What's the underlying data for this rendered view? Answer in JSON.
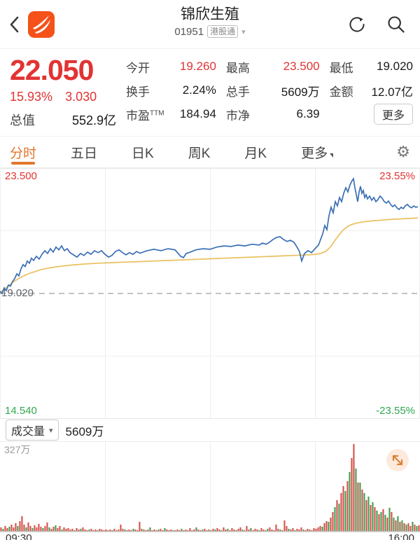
{
  "colors": {
    "accent_red": "#e23333",
    "accent_green": "#2fa84f",
    "tab_orange": "#e2772d",
    "price_line": "#3b6fb5",
    "avg_line": "#e9c05c",
    "vol_up": "#d5504a",
    "vol_down": "#3f9e4f",
    "logo_orange": "#f4521a"
  },
  "header": {
    "title": "锦欣生殖",
    "code": "01951",
    "market_tag": "港股通",
    "caret": "▾"
  },
  "quote": {
    "price": "22.050",
    "change_pct": "15.93%",
    "change_amt": "3.030",
    "mktcap_label": "总值",
    "mktcap_value": "552.9亿",
    "stats": [
      {
        "label": "今开",
        "value": "19.260",
        "color": "red"
      },
      {
        "label": "最高",
        "value": "23.500",
        "color": "red"
      },
      {
        "label": "最低",
        "value": "19.020",
        "color": "dark"
      },
      {
        "label": "换手",
        "value": "2.24%",
        "color": "dark"
      },
      {
        "label": "总手",
        "value": "5609万",
        "color": "dark"
      },
      {
        "label": "金额",
        "value": "12.07亿",
        "color": "dark"
      },
      {
        "label": "市盈",
        "sup": "TTM",
        "value": "184.94",
        "color": "dark"
      },
      {
        "label": "市净",
        "value": "6.39",
        "color": "dark"
      }
    ],
    "more_label": "更多"
  },
  "tabs": {
    "items": [
      "分时",
      "五日",
      "日K",
      "周K",
      "月K",
      "更多"
    ],
    "active_index": 0,
    "gear_icon": "⚙"
  },
  "chart_data": {
    "type": "line",
    "title": "分时走势图 (intraday time-share chart)",
    "x_axis": {
      "start_label": "09:30",
      "end_label": "16:00"
    },
    "y_max": 23.5,
    "y_min": 14.54,
    "prev_close": 19.02,
    "y_max_label": "23.500",
    "mid_label": "19.020",
    "y_min_label": "14.540",
    "pct_max_label": "23.55%",
    "pct_min_label": "-23.55%",
    "grid": "on",
    "series": [
      {
        "name": "price",
        "color": "#3b6fb5",
        "points": [
          [
            0,
            19.1
          ],
          [
            3,
            19.02
          ],
          [
            6,
            19.22
          ],
          [
            9,
            19.12
          ],
          [
            12,
            19.32
          ],
          [
            15,
            19.28
          ],
          [
            18,
            19.45
          ],
          [
            21,
            19.55
          ],
          [
            24,
            19.72
          ],
          [
            27,
            19.65
          ],
          [
            30,
            19.9
          ],
          [
            33,
            20.05
          ],
          [
            36,
            19.98
          ],
          [
            39,
            20.18
          ],
          [
            42,
            20.1
          ],
          [
            45,
            20.28
          ],
          [
            48,
            20.2
          ],
          [
            52,
            20.35
          ],
          [
            56,
            20.25
          ],
          [
            60,
            20.42
          ],
          [
            64,
            20.55
          ],
          [
            68,
            20.45
          ],
          [
            72,
            20.62
          ],
          [
            76,
            20.5
          ],
          [
            80,
            20.68
          ],
          [
            84,
            20.58
          ],
          [
            88,
            20.72
          ],
          [
            92,
            20.55
          ],
          [
            96,
            20.62
          ],
          [
            100,
            20.48
          ],
          [
            105,
            20.4
          ],
          [
            110,
            20.32
          ],
          [
            115,
            20.45
          ],
          [
            120,
            20.38
          ],
          [
            125,
            20.5
          ],
          [
            130,
            20.42
          ],
          [
            135,
            20.55
          ],
          [
            140,
            20.48
          ],
          [
            145,
            20.55
          ],
          [
            150,
            20.42
          ],
          [
            155,
            20.32
          ],
          [
            160,
            20.38
          ],
          [
            165,
            20.52
          ],
          [
            170,
            20.58
          ],
          [
            175,
            20.48
          ],
          [
            180,
            20.4
          ],
          [
            185,
            20.48
          ],
          [
            190,
            20.42
          ],
          [
            195,
            20.52
          ],
          [
            200,
            20.46
          ],
          [
            210,
            20.55
          ],
          [
            220,
            20.6
          ],
          [
            230,
            20.55
          ],
          [
            240,
            20.62
          ],
          [
            250,
            20.58
          ],
          [
            258,
            20.35
          ],
          [
            262,
            20.3
          ],
          [
            266,
            20.45
          ],
          [
            270,
            20.48
          ],
          [
            280,
            20.58
          ],
          [
            290,
            20.62
          ],
          [
            300,
            20.6
          ],
          [
            310,
            20.68
          ],
          [
            320,
            20.72
          ],
          [
            330,
            20.7
          ],
          [
            340,
            20.75
          ],
          [
            350,
            20.72
          ],
          [
            360,
            20.78
          ],
          [
            370,
            20.75
          ],
          [
            375,
            20.82
          ],
          [
            380,
            20.78
          ],
          [
            385,
            20.85
          ],
          [
            390,
            20.95
          ],
          [
            395,
            21.02
          ],
          [
            400,
            21.05
          ],
          [
            405,
            20.95
          ],
          [
            410,
            20.88
          ],
          [
            415,
            20.92
          ],
          [
            420,
            20.85
          ],
          [
            425,
            20.65
          ],
          [
            428,
            20.5
          ],
          [
            431,
            20.18
          ],
          [
            435,
            20.45
          ],
          [
            440,
            20.55
          ],
          [
            445,
            20.48
          ],
          [
            450,
            20.62
          ],
          [
            455,
            20.75
          ],
          [
            458,
            20.95
          ],
          [
            461,
            21.15
          ],
          [
            464,
            21.45
          ],
          [
            467,
            21.3
          ],
          [
            470,
            21.8
          ],
          [
            473,
            22.1
          ],
          [
            476,
            21.9
          ],
          [
            479,
            22.3
          ],
          [
            482,
            22.15
          ],
          [
            485,
            22.45
          ],
          [
            488,
            22.3
          ],
          [
            491,
            22.6
          ],
          [
            494,
            22.8
          ],
          [
            497,
            22.65
          ],
          [
            500,
            22.9
          ],
          [
            503,
            23.05
          ],
          [
            505,
            23.12
          ],
          [
            507,
            22.8
          ],
          [
            509,
            22.55
          ],
          [
            511,
            22.3
          ],
          [
            513,
            22.65
          ],
          [
            515,
            22.85
          ],
          [
            517,
            22.6
          ],
          [
            519,
            22.7
          ],
          [
            521,
            22.45
          ],
          [
            523,
            22.55
          ],
          [
            525,
            22.4
          ],
          [
            528,
            22.5
          ],
          [
            531,
            22.35
          ],
          [
            534,
            22.45
          ],
          [
            537,
            22.3
          ],
          [
            540,
            22.38
          ],
          [
            543,
            22.5
          ],
          [
            546,
            22.42
          ],
          [
            549,
            22.3
          ],
          [
            552,
            22.25
          ],
          [
            555,
            22.32
          ],
          [
            558,
            22.2
          ],
          [
            561,
            22.12
          ],
          [
            564,
            22.18
          ],
          [
            567,
            22.08
          ],
          [
            570,
            22.02
          ],
          [
            573,
            22.1
          ],
          [
            576,
            22.05
          ],
          [
            579,
            22.15
          ],
          [
            582,
            22.2
          ],
          [
            585,
            22.12
          ],
          [
            588,
            22.08
          ],
          [
            591,
            22.15
          ],
          [
            594,
            22.1
          ],
          [
            597,
            22.12
          ]
        ]
      },
      {
        "name": "avg_price",
        "color": "#e9c05c",
        "points": [
          [
            0,
            19.05
          ],
          [
            10,
            19.25
          ],
          [
            20,
            19.45
          ],
          [
            30,
            19.6
          ],
          [
            40,
            19.72
          ],
          [
            50,
            19.8
          ],
          [
            60,
            19.88
          ],
          [
            70,
            19.93
          ],
          [
            80,
            19.97
          ],
          [
            90,
            20.0
          ],
          [
            100,
            20.03
          ],
          [
            120,
            20.07
          ],
          [
            140,
            20.1
          ],
          [
            160,
            20.12
          ],
          [
            180,
            20.14
          ],
          [
            200,
            20.16
          ],
          [
            220,
            20.18
          ],
          [
            240,
            20.2
          ],
          [
            260,
            20.22
          ],
          [
            280,
            20.24
          ],
          [
            300,
            20.26
          ],
          [
            320,
            20.28
          ],
          [
            340,
            20.3
          ],
          [
            360,
            20.32
          ],
          [
            380,
            20.34
          ],
          [
            400,
            20.36
          ],
          [
            420,
            20.38
          ],
          [
            440,
            20.4
          ],
          [
            450,
            20.42
          ],
          [
            458,
            20.45
          ],
          [
            465,
            20.52
          ],
          [
            472,
            20.68
          ],
          [
            478,
            20.9
          ],
          [
            484,
            21.1
          ],
          [
            490,
            21.28
          ],
          [
            496,
            21.4
          ],
          [
            502,
            21.48
          ],
          [
            510,
            21.54
          ],
          [
            520,
            21.58
          ],
          [
            530,
            21.61
          ],
          [
            540,
            21.63
          ],
          [
            555,
            21.66
          ],
          [
            570,
            21.68
          ],
          [
            585,
            21.7
          ],
          [
            597,
            21.72
          ]
        ]
      }
    ],
    "volume": {
      "panel_label": "成交量",
      "panel_value": "5609万",
      "max_label": "327万",
      "bars_note": "signed heights px; positive=up(red), negative=down(green); max 125px = 327万",
      "bars": [
        6,
        -4,
        8,
        5,
        -7,
        10,
        6,
        12,
        -8,
        15,
        22,
        10,
        -6,
        13,
        8,
        -5,
        9,
        6,
        11,
        7,
        -5,
        8,
        13,
        -6,
        4,
        7,
        -9,
        5,
        8,
        -3,
        6,
        4,
        5,
        3,
        4,
        -2,
        5,
        3,
        -4,
        6,
        3,
        2,
        -3,
        4,
        2,
        3,
        -2,
        4,
        3,
        2,
        3,
        2,
        3,
        -2,
        4,
        2,
        3,
        10,
        4,
        -3,
        2,
        3,
        2,
        -4,
        3,
        2,
        14,
        4,
        -3,
        2,
        3,
        -6,
        2,
        3,
        2,
        -3,
        4,
        2,
        -5,
        3,
        2,
        3,
        -2,
        2,
        3,
        2,
        -4,
        2,
        3,
        -2,
        5,
        2,
        3,
        -6,
        3,
        2,
        -3,
        4,
        2,
        3,
        -2,
        4,
        -3,
        5,
        3,
        -2,
        6,
        3,
        -4,
        2,
        5,
        3,
        -2,
        4,
        6,
        -3,
        2,
        8,
        3,
        -5,
        2,
        4,
        3,
        -2,
        5,
        3,
        2,
        -4,
        6,
        3,
        2,
        10,
        4,
        -3,
        2,
        16,
        8,
        -4,
        3,
        5,
        -2,
        4,
        3,
        6,
        -3,
        2,
        4,
        3,
        -2,
        5,
        4,
        6,
        8,
        -7,
        12,
        15,
        -14,
        20,
        28,
        -35,
        45,
        -40,
        55,
        65,
        -58,
        72,
        -85,
        105,
        125,
        -90,
        70,
        -70,
        60,
        -55,
        45,
        -50,
        38,
        -42,
        35,
        -30,
        25,
        -28,
        32,
        -24,
        20,
        -34,
        28,
        -20,
        16,
        -22,
        14,
        -16,
        12,
        -10,
        12,
        8,
        -14,
        10,
        -8,
        9
      ]
    }
  }
}
